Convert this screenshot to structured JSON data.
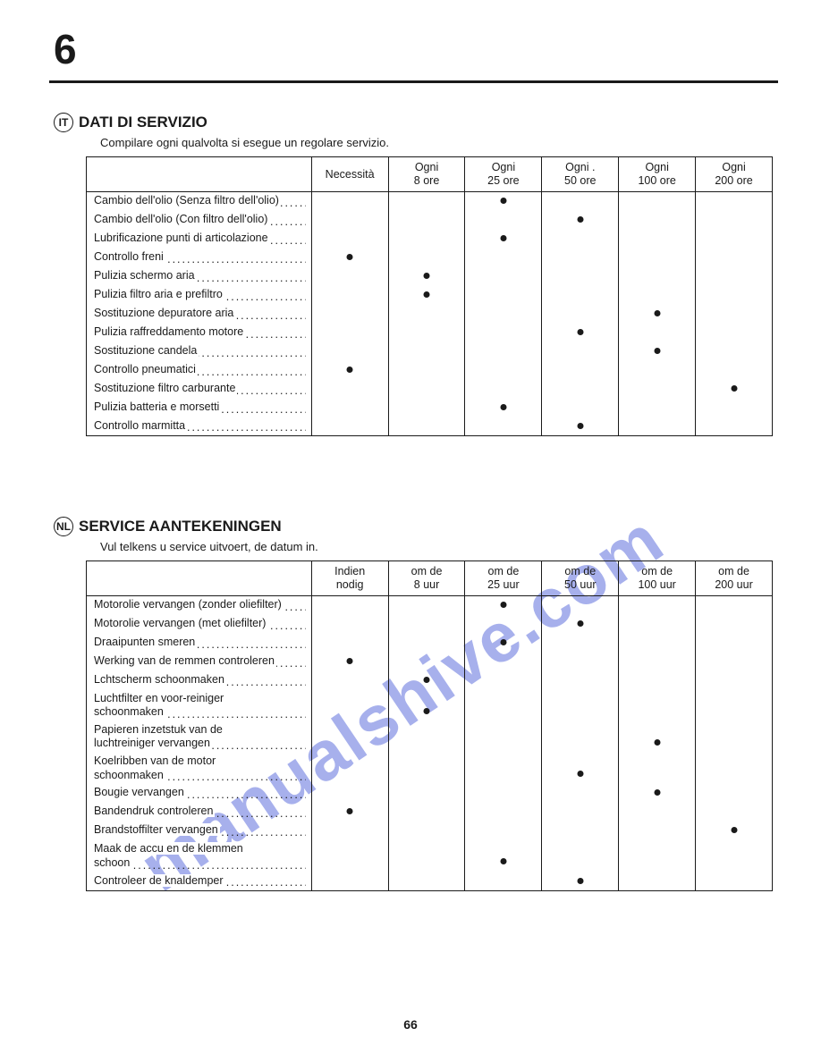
{
  "page": {
    "chapter_number": "6",
    "page_number": "66",
    "watermark": "manualshive.com"
  },
  "section_it": {
    "lang_code": "IT",
    "heading": "DATI DI SERVIZIO",
    "subheading": "Compilare ogni qualvolta si esegue un regolare servizio.",
    "columns": [
      {
        "line1": "",
        "line2": ""
      },
      {
        "line1": "Necessità",
        "line2": ""
      },
      {
        "line1": "Ogni",
        "line2": "8 ore"
      },
      {
        "line1": "Ogni",
        "line2": "25 ore"
      },
      {
        "line1": "Ogni .",
        "line2": "50 ore"
      },
      {
        "line1": "Ogni",
        "line2": "100 ore"
      },
      {
        "line1": "Ogni",
        "line2": "200 ore"
      }
    ],
    "rows": [
      {
        "label": "Cambio dell'olio (Senza filtro dell'olio)",
        "col": 3
      },
      {
        "label": "Cambio dell'olio (Con filtro dell'olio)",
        "col": 4
      },
      {
        "label": "Lubrificazione punti di articolazione",
        "col": 3
      },
      {
        "label": "Controllo freni",
        "col": 1
      },
      {
        "label": "Pulizia schermo aria",
        "col": 2
      },
      {
        "label": "Pulizia filtro aria e prefiltro",
        "col": 2
      },
      {
        "label": "Sostituzione depuratore aria",
        "col": 5
      },
      {
        "label": "Pulizia raffreddamento motore",
        "col": 4
      },
      {
        "label": "Sostituzione candela",
        "col": 5
      },
      {
        "label": "Controllo pneumatici",
        "col": 1
      },
      {
        "label": "Sostituzione filtro carburante",
        "col": 6
      },
      {
        "label": "Pulizia batteria e morsetti",
        "col": 3
      },
      {
        "label": "Controllo marmitta",
        "col": 4
      }
    ]
  },
  "section_nl": {
    "lang_code": "NL",
    "heading": "SERVICE AANTEKENINGEN",
    "subheading": "Vul telkens u service uitvoert, de datum in.",
    "columns": [
      {
        "line1": "",
        "line2": ""
      },
      {
        "line1": "Indien",
        "line2": "nodig"
      },
      {
        "line1": "om de",
        "line2": "8 uur"
      },
      {
        "line1": "om de",
        "line2": "25 uur"
      },
      {
        "line1": "om de",
        "line2": "50 uur"
      },
      {
        "line1": "om de",
        "line2": "100 uur"
      },
      {
        "line1": "om de",
        "line2": "200 uur"
      }
    ],
    "rows": [
      {
        "label": "Motorolie vervangen (zonder oliefilter)",
        "col": 3
      },
      {
        "label": "Motorolie vervangen (met oliefilter)",
        "col": 4
      },
      {
        "label": "Draaipunten smeren",
        "col": 3
      },
      {
        "label": "Werking van de remmen controleren",
        "col": 1
      },
      {
        "label": "Lchtscherm schoonmaken",
        "col": 2
      },
      {
        "label": "Luchtfilter en voor-reiniger\nschoonmaken",
        "col": 2
      },
      {
        "label": "Papieren inzetstuk van de\nluchtreiniger vervangen",
        "col": 5
      },
      {
        "label": "Koelribben van de motor\nschoonmaken",
        "col": 4
      },
      {
        "label": "Bougie vervangen",
        "col": 5
      },
      {
        "label": "Bandendruk controleren",
        "col": 1
      },
      {
        "label": "Brandstoffilter vervangen",
        "col": 6
      },
      {
        "label": "Maak de accu en de klemmen\nschoon",
        "col": 3
      },
      {
        "label": "Controleer de knaldemper",
        "col": 4
      }
    ]
  }
}
